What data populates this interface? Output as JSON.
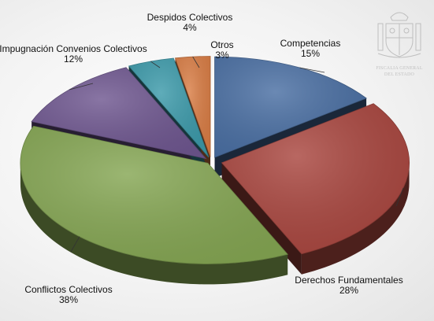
{
  "chart_data": {
    "type": "pie",
    "style": "3d-exploded",
    "slices": [
      {
        "label": "Competencias",
        "value": 15,
        "value_label": "15%",
        "color": "#4a6fa3"
      },
      {
        "label": "Derechos Fundamentales",
        "value": 28,
        "value_label": "28%",
        "color": "#a9463f"
      },
      {
        "label": "Conflictos Colectivos",
        "value": 38,
        "value_label": "38%",
        "color": "#85a653"
      },
      {
        "label": "Impugnación Convenios Colectivos",
        "value": 12,
        "value_label": "12%",
        "color": "#6f5790"
      },
      {
        "label": "Despidos Colectivos",
        "value": 4,
        "value_label": "4%",
        "color": "#3c9aaa"
      },
      {
        "label": "Otros",
        "value": 3,
        "value_label": "3%",
        "color": "#d97d45"
      }
    ],
    "legend": "none",
    "start_angle_deg": 90,
    "direction": "clockwise"
  },
  "logo": {
    "text_line1": "FISCALIA GENERAL",
    "text_line2": "DEL ESTADO"
  }
}
